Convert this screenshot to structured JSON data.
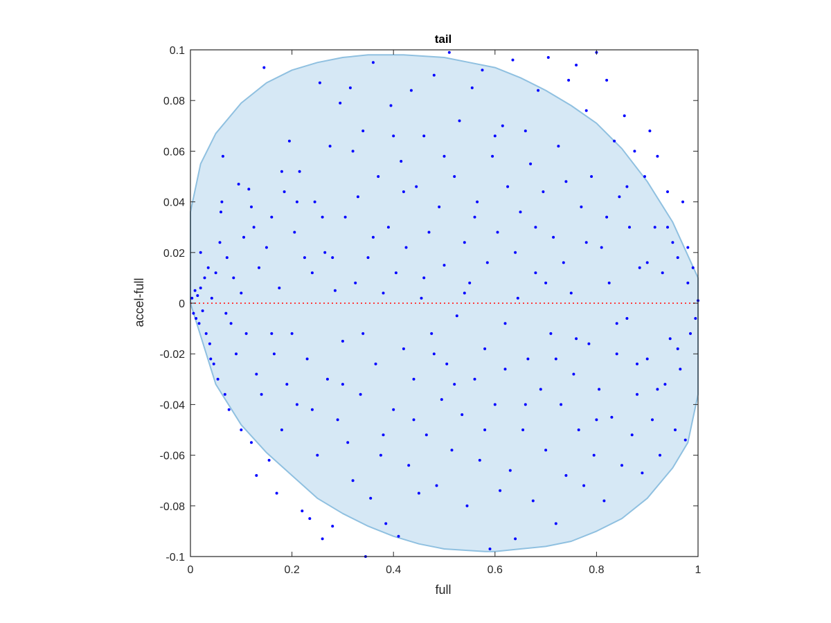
{
  "chart_data": {
    "type": "scatter",
    "title": "tail",
    "xlabel": "full",
    "ylabel": "accel-full",
    "xlim": [
      0,
      1
    ],
    "ylim": [
      -0.1,
      0.1
    ],
    "xticks": [
      0,
      0.2,
      0.4,
      0.6,
      0.8,
      1
    ],
    "xtick_labels": [
      "0",
      "0.2",
      "0.4",
      "0.6",
      "0.8",
      "1"
    ],
    "yticks": [
      -0.1,
      -0.08,
      -0.06,
      -0.04,
      -0.02,
      0,
      0.02,
      0.04,
      0.06,
      0.08,
      0.1
    ],
    "ytick_labels": [
      "-0.1",
      "-0.08",
      "-0.06",
      "-0.04",
      "-0.02",
      "0",
      "0.02",
      "0.04",
      "0.06",
      "0.08",
      "0.1"
    ],
    "grid": false,
    "legend": "none",
    "colors": {
      "points": "#0000ff",
      "zero_line": "#ff3b3b",
      "region_fill": "#d6e8f5",
      "region_edge": "#8fc0e0",
      "axes": "#262626"
    },
    "zero_line": {
      "y": 0,
      "style": "dotted"
    },
    "region": {
      "shape": "ellipse",
      "x": [
        0.0,
        0.02,
        0.05,
        0.1,
        0.15,
        0.2,
        0.25,
        0.3,
        0.35,
        0.4,
        0.42,
        0.5,
        0.55,
        0.6,
        0.65,
        0.7,
        0.75,
        0.8,
        0.85,
        0.9,
        0.95,
        1.0,
        1.0,
        0.98,
        0.95,
        0.9,
        0.85,
        0.8,
        0.75,
        0.7,
        0.65,
        0.6,
        0.58,
        0.5,
        0.45,
        0.4,
        0.35,
        0.3,
        0.25,
        0.2,
        0.15,
        0.1,
        0.05,
        0.0
      ],
      "y": [
        0.036,
        0.055,
        0.067,
        0.079,
        0.087,
        0.092,
        0.095,
        0.097,
        0.098,
        0.098,
        0.098,
        0.097,
        0.095,
        0.093,
        0.089,
        0.084,
        0.078,
        0.071,
        0.061,
        0.048,
        0.032,
        0.01,
        -0.036,
        -0.055,
        -0.065,
        -0.077,
        -0.085,
        -0.09,
        -0.094,
        -0.096,
        -0.097,
        -0.098,
        -0.098,
        -0.097,
        -0.095,
        -0.092,
        -0.088,
        -0.083,
        -0.077,
        -0.068,
        -0.059,
        -0.048,
        -0.032,
        0.0
      ]
    },
    "series": [
      {
        "points": [
          [
            0.003,
            0.002
          ],
          [
            0.006,
            -0.004
          ],
          [
            0.009,
            0.005
          ],
          [
            0.011,
            -0.006
          ],
          [
            0.014,
            0.003
          ],
          [
            0.017,
            -0.008
          ],
          [
            0.02,
            0.006
          ],
          [
            0.024,
            -0.003
          ],
          [
            0.028,
            0.01
          ],
          [
            0.031,
            -0.012
          ],
          [
            0.035,
            0.014
          ],
          [
            0.038,
            -0.016
          ],
          [
            0.042,
            0.002
          ],
          [
            0.046,
            -0.024
          ],
          [
            0.05,
            0.012
          ],
          [
            0.054,
            -0.03
          ],
          [
            0.058,
            0.024
          ],
          [
            0.062,
            0.04
          ],
          [
            0.064,
            0.058
          ],
          [
            0.068,
            -0.036
          ],
          [
            0.072,
            0.018
          ],
          [
            0.076,
            -0.042
          ],
          [
            0.08,
            -0.008
          ],
          [
            0.085,
            0.01
          ],
          [
            0.09,
            -0.02
          ],
          [
            0.095,
            0.047
          ],
          [
            0.1,
            -0.05
          ],
          [
            0.105,
            0.026
          ],
          [
            0.11,
            -0.012
          ],
          [
            0.115,
            0.045
          ],
          [
            0.12,
            -0.055
          ],
          [
            0.125,
            0.03
          ],
          [
            0.13,
            -0.068
          ],
          [
            0.135,
            0.014
          ],
          [
            0.14,
            -0.036
          ],
          [
            0.145,
            0.093
          ],
          [
            0.15,
            0.022
          ],
          [
            0.155,
            -0.062
          ],
          [
            0.16,
            0.034
          ],
          [
            0.165,
            -0.02
          ],
          [
            0.17,
            -0.075
          ],
          [
            0.175,
            0.006
          ],
          [
            0.18,
            -0.05
          ],
          [
            0.185,
            0.044
          ],
          [
            0.19,
            -0.032
          ],
          [
            0.195,
            0.064
          ],
          [
            0.2,
            -0.012
          ],
          [
            0.205,
            0.028
          ],
          [
            0.21,
            -0.04
          ],
          [
            0.215,
            0.052
          ],
          [
            0.22,
            -0.082
          ],
          [
            0.225,
            0.018
          ],
          [
            0.23,
            -0.022
          ],
          [
            0.235,
            -0.085
          ],
          [
            0.24,
            0.012
          ],
          [
            0.245,
            0.04
          ],
          [
            0.25,
            -0.06
          ],
          [
            0.255,
            0.087
          ],
          [
            0.26,
            -0.093
          ],
          [
            0.265,
            0.02
          ],
          [
            0.27,
            -0.03
          ],
          [
            0.275,
            0.062
          ],
          [
            0.28,
            -0.088
          ],
          [
            0.285,
            0.005
          ],
          [
            0.29,
            -0.046
          ],
          [
            0.295,
            0.079
          ],
          [
            0.3,
            -0.015
          ],
          [
            0.305,
            0.034
          ],
          [
            0.31,
            -0.055
          ],
          [
            0.315,
            0.085
          ],
          [
            0.32,
            -0.07
          ],
          [
            0.325,
            0.008
          ],
          [
            0.33,
            0.042
          ],
          [
            0.335,
            -0.036
          ],
          [
            0.34,
            0.068
          ],
          [
            0.345,
            -0.1
          ],
          [
            0.35,
            0.018
          ],
          [
            0.355,
            -0.077
          ],
          [
            0.36,
            0.095
          ],
          [
            0.365,
            -0.024
          ],
          [
            0.37,
            0.05
          ],
          [
            0.375,
            -0.06
          ],
          [
            0.38,
            0.004
          ],
          [
            0.385,
            -0.087
          ],
          [
            0.39,
            0.03
          ],
          [
            0.395,
            0.078
          ],
          [
            0.4,
            -0.042
          ],
          [
            0.405,
            0.012
          ],
          [
            0.41,
            -0.092
          ],
          [
            0.415,
            0.056
          ],
          [
            0.42,
            -0.018
          ],
          [
            0.425,
            0.022
          ],
          [
            0.43,
            -0.064
          ],
          [
            0.435,
            0.084
          ],
          [
            0.44,
            -0.03
          ],
          [
            0.445,
            0.046
          ],
          [
            0.45,
            -0.075
          ],
          [
            0.455,
            0.002
          ],
          [
            0.46,
            0.066
          ],
          [
            0.465,
            -0.052
          ],
          [
            0.47,
            0.028
          ],
          [
            0.475,
            -0.012
          ],
          [
            0.48,
            0.09
          ],
          [
            0.485,
            -0.072
          ],
          [
            0.49,
            0.038
          ],
          [
            0.495,
            -0.038
          ],
          [
            0.5,
            0.015
          ],
          [
            0.505,
            -0.024
          ],
          [
            0.51,
            0.099
          ],
          [
            0.515,
            -0.058
          ],
          [
            0.52,
            0.05
          ],
          [
            0.525,
            -0.005
          ],
          [
            0.53,
            0.072
          ],
          [
            0.535,
            -0.044
          ],
          [
            0.54,
            0.024
          ],
          [
            0.545,
            -0.08
          ],
          [
            0.55,
            0.008
          ],
          [
            0.555,
            0.085
          ],
          [
            0.56,
            -0.03
          ],
          [
            0.565,
            0.04
          ],
          [
            0.57,
            -0.062
          ],
          [
            0.575,
            0.092
          ],
          [
            0.58,
            -0.018
          ],
          [
            0.585,
            0.016
          ],
          [
            0.59,
            -0.097
          ],
          [
            0.595,
            0.058
          ],
          [
            0.6,
            -0.04
          ],
          [
            0.605,
            0.028
          ],
          [
            0.61,
            -0.074
          ],
          [
            0.615,
            0.07
          ],
          [
            0.62,
            -0.008
          ],
          [
            0.625,
            0.046
          ],
          [
            0.63,
            -0.066
          ],
          [
            0.635,
            0.096
          ],
          [
            0.64,
            -0.093
          ],
          [
            0.645,
            0.002
          ],
          [
            0.65,
            0.036
          ],
          [
            0.655,
            -0.05
          ],
          [
            0.66,
            0.068
          ],
          [
            0.665,
            -0.022
          ],
          [
            0.67,
            0.055
          ],
          [
            0.675,
            -0.078
          ],
          [
            0.68,
            0.012
          ],
          [
            0.685,
            0.084
          ],
          [
            0.69,
            -0.034
          ],
          [
            0.695,
            0.044
          ],
          [
            0.7,
            -0.058
          ],
          [
            0.705,
            0.097
          ],
          [
            0.71,
            -0.012
          ],
          [
            0.715,
            0.026
          ],
          [
            0.72,
            -0.087
          ],
          [
            0.725,
            0.062
          ],
          [
            0.73,
            -0.04
          ],
          [
            0.735,
            0.016
          ],
          [
            0.74,
            -0.068
          ],
          [
            0.745,
            0.088
          ],
          [
            0.75,
            0.004
          ],
          [
            0.755,
            -0.028
          ],
          [
            0.76,
            0.094
          ],
          [
            0.765,
            -0.05
          ],
          [
            0.77,
            0.038
          ],
          [
            0.775,
            -0.072
          ],
          [
            0.78,
            0.076
          ],
          [
            0.785,
            -0.016
          ],
          [
            0.79,
            0.05
          ],
          [
            0.795,
            -0.06
          ],
          [
            0.8,
            0.099
          ],
          [
            0.805,
            -0.034
          ],
          [
            0.81,
            0.022
          ],
          [
            0.815,
            -0.078
          ],
          [
            0.82,
            0.088
          ],
          [
            0.825,
            0.008
          ],
          [
            0.83,
            -0.045
          ],
          [
            0.835,
            0.064
          ],
          [
            0.84,
            -0.02
          ],
          [
            0.845,
            0.042
          ],
          [
            0.85,
            -0.064
          ],
          [
            0.855,
            0.074
          ],
          [
            0.86,
            -0.006
          ],
          [
            0.865,
            0.03
          ],
          [
            0.87,
            -0.052
          ],
          [
            0.875,
            0.06
          ],
          [
            0.88,
            -0.036
          ],
          [
            0.885,
            0.014
          ],
          [
            0.89,
            -0.067
          ],
          [
            0.895,
            0.05
          ],
          [
            0.9,
            -0.022
          ],
          [
            0.905,
            0.068
          ],
          [
            0.91,
            -0.046
          ],
          [
            0.915,
            0.03
          ],
          [
            0.92,
            0.058
          ],
          [
            0.925,
            -0.06
          ],
          [
            0.93,
            0.012
          ],
          [
            0.935,
            -0.032
          ],
          [
            0.94,
            0.044
          ],
          [
            0.945,
            -0.014
          ],
          [
            0.95,
            0.024
          ],
          [
            0.955,
            -0.05
          ],
          [
            0.96,
            0.018
          ],
          [
            0.965,
            -0.026
          ],
          [
            0.97,
            0.04
          ],
          [
            0.975,
            -0.054
          ],
          [
            0.98,
            0.008
          ],
          [
            0.985,
            -0.012
          ],
          [
            0.99,
            0.014
          ],
          [
            0.995,
            -0.006
          ],
          [
            1.0,
            0.001
          ],
          [
            0.02,
            0.02
          ],
          [
            0.04,
            -0.022
          ],
          [
            0.06,
            0.036
          ],
          [
            0.07,
            -0.004
          ],
          [
            0.1,
            0.004
          ],
          [
            0.12,
            0.038
          ],
          [
            0.13,
            -0.028
          ],
          [
            0.16,
            -0.012
          ],
          [
            0.18,
            0.052
          ],
          [
            0.21,
            0.04
          ],
          [
            0.24,
            -0.042
          ],
          [
            0.26,
            0.034
          ],
          [
            0.28,
            0.018
          ],
          [
            0.3,
            -0.032
          ],
          [
            0.32,
            0.06
          ],
          [
            0.34,
            -0.012
          ],
          [
            0.36,
            0.026
          ],
          [
            0.38,
            -0.052
          ],
          [
            0.4,
            0.066
          ],
          [
            0.42,
            0.044
          ],
          [
            0.44,
            -0.046
          ],
          [
            0.46,
            0.01
          ],
          [
            0.48,
            -0.02
          ],
          [
            0.5,
            0.058
          ],
          [
            0.52,
            -0.032
          ],
          [
            0.54,
            0.004
          ],
          [
            0.56,
            0.034
          ],
          [
            0.58,
            -0.05
          ],
          [
            0.6,
            0.066
          ],
          [
            0.62,
            -0.026
          ],
          [
            0.64,
            0.02
          ],
          [
            0.66,
            -0.04
          ],
          [
            0.68,
            0.03
          ],
          [
            0.7,
            0.008
          ],
          [
            0.72,
            -0.022
          ],
          [
            0.74,
            0.048
          ],
          [
            0.76,
            -0.014
          ],
          [
            0.78,
            0.024
          ],
          [
            0.8,
            -0.046
          ],
          [
            0.82,
            0.034
          ],
          [
            0.84,
            -0.008
          ],
          [
            0.86,
            0.046
          ],
          [
            0.88,
            -0.024
          ],
          [
            0.9,
            0.016
          ],
          [
            0.92,
            -0.034
          ],
          [
            0.94,
            0.03
          ],
          [
            0.96,
            -0.018
          ],
          [
            0.98,
            0.022
          ]
        ]
      }
    ]
  }
}
